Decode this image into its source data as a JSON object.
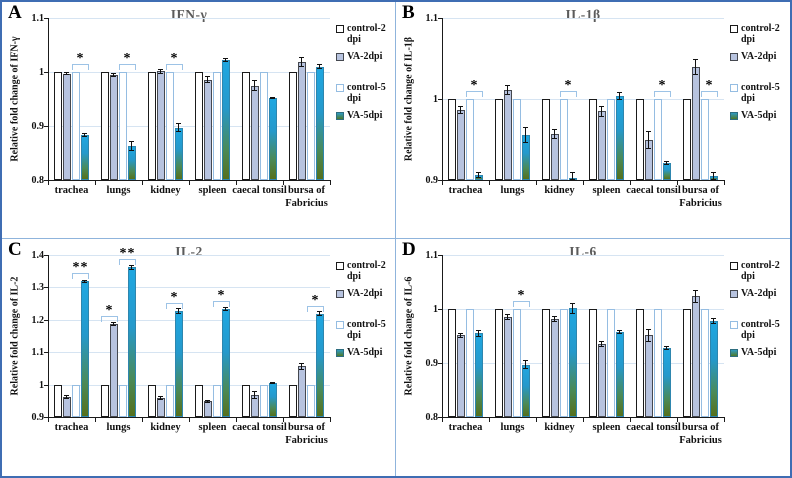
{
  "figure": {
    "description": "Four-panel bar chart of relative cytokine fold changes",
    "panels": [
      "A",
      "B",
      "C",
      "D"
    ]
  },
  "colors": {
    "outer_border": "#3F6DB3",
    "panel_divider": "#8FB4DC",
    "grid": "#D6E4F2",
    "axis": "#1a1a1a",
    "title": "#5B5B5B",
    "bracket": "#9DC3E6",
    "control2_fill": "#FFFFFF",
    "control2_border": "#1a1a1a",
    "va2_fill": "#B7C3DF",
    "control5_fill": "#FFFFFF",
    "control5_border": "#95BDE2",
    "va5_gradient_top": "#1FA7E1",
    "va5_gradient_bottom": "#55701C"
  },
  "categories": [
    "trachea",
    "lungs",
    "kidney",
    "spleen",
    "caecal tonsil",
    "bursa of Fabricius"
  ],
  "category_lines": [
    [
      "trachea"
    ],
    [
      "lungs"
    ],
    [
      "kidney"
    ],
    [
      "spleen"
    ],
    [
      "caecal tonsil"
    ],
    [
      "bursa of",
      "Fabricius"
    ]
  ],
  "legend": [
    {
      "key": "control2",
      "label": "control-2 dpi"
    },
    {
      "key": "va2",
      "label": "VA-2dpi"
    },
    {
      "key": "control5",
      "label": "control-5 dpi"
    },
    {
      "key": "va5",
      "label": "VA-5dpi"
    }
  ],
  "chart_data": [
    {
      "panel": "A",
      "type": "bar",
      "title": "IFN-γ",
      "ylabel": "Relative fold change of IFN-γ",
      "ylim": [
        0.8,
        1.1
      ],
      "yticks": [
        "0.8",
        "0.9",
        "1",
        "1.1"
      ],
      "grid": true,
      "legend_position": "right",
      "categories": [
        "trachea",
        "lungs",
        "kidney",
        "spleen",
        "caecal tonsil",
        "bursa of Fabricius"
      ],
      "series": [
        {
          "name": "control-2 dpi",
          "key": "control2",
          "values": [
            1,
            1,
            1,
            1,
            1,
            1
          ],
          "errors": [
            0,
            0,
            0,
            0,
            0,
            0
          ]
        },
        {
          "name": "VA-2dpi",
          "key": "va2",
          "values": [
            0.997,
            0.995,
            1.001,
            0.986,
            0.975,
            1.018
          ],
          "errors": [
            0.003,
            0.004,
            0.004,
            0.006,
            0.01,
            0.009
          ]
        },
        {
          "name": "control-5 dpi",
          "key": "control5",
          "values": [
            1,
            1,
            1,
            1,
            1,
            1
          ],
          "errors": [
            0,
            0,
            0,
            0,
            0,
            0
          ]
        },
        {
          "name": "VA-5dpi",
          "key": "va5",
          "values": [
            0.883,
            0.863,
            0.897,
            1.022,
            0.952,
            1.01
          ],
          "errors": [
            0.004,
            0.009,
            0.008,
            0.004,
            0.002,
            0.005
          ]
        }
      ],
      "significance": [
        {
          "category": "trachea",
          "category_index": 0,
          "pair": "5dpi",
          "compares": "control-5 dpi vs VA-5dpi",
          "label": "*"
        },
        {
          "category": "lungs",
          "category_index": 1,
          "pair": "5dpi",
          "compares": "control-5 dpi vs VA-5dpi",
          "label": "*"
        },
        {
          "category": "kidney",
          "category_index": 2,
          "pair": "5dpi",
          "compares": "control-5 dpi vs VA-5dpi",
          "label": "*"
        }
      ]
    },
    {
      "panel": "B",
      "type": "bar",
      "title": "IL-1β",
      "ylabel": "Relative fold change of IL-1β",
      "ylim": [
        0.9,
        1.1
      ],
      "yticks": [
        "0.9",
        "1",
        "1.1"
      ],
      "grid": true,
      "legend_position": "right",
      "categories": [
        "trachea",
        "lungs",
        "kidney",
        "spleen",
        "caecal tonsil",
        "bursa of Fabricius"
      ],
      "series": [
        {
          "name": "control-2 dpi",
          "key": "control2",
          "values": [
            1,
            1,
            1,
            1,
            1,
            1
          ],
          "errors": [
            0,
            0,
            0,
            0,
            0,
            0
          ]
        },
        {
          "name": "VA-2dpi",
          "key": "va2",
          "values": [
            0.986,
            1.011,
            0.957,
            0.985,
            0.949,
            1.04
          ],
          "errors": [
            0.005,
            0.006,
            0.006,
            0.007,
            0.011,
            0.01
          ]
        },
        {
          "name": "control-5 dpi",
          "key": "control5",
          "values": [
            1,
            1,
            1,
            1,
            1,
            1
          ],
          "errors": [
            0,
            0,
            0,
            0,
            0,
            0
          ]
        },
        {
          "name": "VA-5dpi",
          "key": "va5",
          "values": [
            0.906,
            0.956,
            0.901,
            1.004,
            0.921,
            0.905
          ],
          "errors": [
            0.004,
            0.01,
            0.009,
            0.005,
            0.003,
            0.005
          ]
        }
      ],
      "significance": [
        {
          "category": "trachea",
          "category_index": 0,
          "pair": "5dpi",
          "compares": "control-5 dpi vs VA-5dpi",
          "label": "*"
        },
        {
          "category": "kidney",
          "category_index": 2,
          "pair": "5dpi",
          "compares": "control-5 dpi vs VA-5dpi",
          "label": "*"
        },
        {
          "category": "caecal tonsil",
          "category_index": 4,
          "pair": "5dpi",
          "compares": "control-5 dpi vs VA-5dpi",
          "label": "*"
        },
        {
          "category": "bursa of Fabricius",
          "category_index": 5,
          "pair": "5dpi",
          "compares": "control-5 dpi vs VA-5dpi",
          "label": "*"
        }
      ]
    },
    {
      "panel": "C",
      "type": "bar",
      "title": "IL-2",
      "ylabel": "Relative fold change of IL-2",
      "ylim": [
        0.9,
        1.4
      ],
      "yticks": [
        "0.9",
        "1",
        "1.1",
        "1.2",
        "1.3",
        "1.4"
      ],
      "grid": true,
      "legend_position": "right",
      "categories": [
        "trachea",
        "lungs",
        "kidney",
        "spleen",
        "caecal tonsil",
        "bursa of Fabricius"
      ],
      "series": [
        {
          "name": "control-2 dpi",
          "key": "control2",
          "values": [
            1,
            1,
            1,
            1,
            1,
            1
          ],
          "errors": [
            0,
            0,
            0,
            0,
            0,
            0
          ]
        },
        {
          "name": "VA-2dpi",
          "key": "va2",
          "values": [
            0.962,
            1.187,
            0.959,
            0.948,
            0.968,
            1.056
          ],
          "errors": [
            0.006,
            0.005,
            0.006,
            0.005,
            0.012,
            0.01
          ]
        },
        {
          "name": "control-5 dpi",
          "key": "control5",
          "values": [
            1,
            1,
            1,
            1,
            1,
            1
          ],
          "errors": [
            0,
            0,
            0,
            0,
            0,
            0
          ]
        },
        {
          "name": "VA-5dpi",
          "key": "va5",
          "values": [
            1.319,
            1.362,
            1.228,
            1.234,
            1.005,
            1.219
          ],
          "errors": [
            0.005,
            0.008,
            0.009,
            0.006,
            0.002,
            0.007
          ]
        }
      ],
      "significance": [
        {
          "category": "trachea",
          "category_index": 0,
          "pair": "5dpi",
          "compares": "control-5 dpi vs VA-5dpi",
          "label": "**"
        },
        {
          "category": "lungs",
          "category_index": 1,
          "pair": "2dpi",
          "compares": "control-2 dpi vs VA-2dpi",
          "label": "*"
        },
        {
          "category": "lungs",
          "category_index": 1,
          "pair": "5dpi",
          "compares": "control-5 dpi vs VA-5dpi",
          "label": "**"
        },
        {
          "category": "kidney",
          "category_index": 2,
          "pair": "5dpi",
          "compares": "control-5 dpi vs VA-5dpi",
          "label": "*"
        },
        {
          "category": "spleen",
          "category_index": 3,
          "pair": "5dpi",
          "compares": "control-5 dpi vs VA-5dpi",
          "label": "*"
        },
        {
          "category": "bursa of Fabricius",
          "category_index": 5,
          "pair": "5dpi",
          "compares": "control-5 dpi vs VA-5dpi",
          "label": "*"
        }
      ]
    },
    {
      "panel": "D",
      "type": "bar",
      "title": "IL-6",
      "ylabel": "Relative fold change of IL-6",
      "ylim": [
        0.8,
        1.1
      ],
      "yticks": [
        "0.8",
        "0.9",
        "1",
        "1.1"
      ],
      "grid": true,
      "legend_position": "right",
      "categories": [
        "trachea",
        "lungs",
        "kidney",
        "spleen",
        "caecal tonsil",
        "bursa of Fabricius"
      ],
      "series": [
        {
          "name": "control-2 dpi",
          "key": "control2",
          "values": [
            1,
            1,
            1,
            1,
            1,
            1
          ],
          "errors": [
            0,
            0,
            0,
            0,
            0,
            0
          ]
        },
        {
          "name": "VA-2dpi",
          "key": "va2",
          "values": [
            0.951,
            0.985,
            0.982,
            0.935,
            0.951,
            1.024
          ],
          "errors": [
            0.004,
            0.006,
            0.006,
            0.006,
            0.012,
            0.012
          ]
        },
        {
          "name": "control-5 dpi",
          "key": "control5",
          "values": [
            1,
            1,
            1,
            1,
            1,
            1
          ],
          "errors": [
            0,
            0,
            0,
            0,
            0,
            0
          ]
        },
        {
          "name": "VA-5dpi",
          "key": "va5",
          "values": [
            0.955,
            0.897,
            1.001,
            0.957,
            0.928,
            0.978
          ],
          "errors": [
            0.006,
            0.009,
            0.01,
            0.004,
            0.003,
            0.006
          ]
        }
      ],
      "significance": [
        {
          "category": "lungs",
          "category_index": 1,
          "pair": "5dpi",
          "compares": "control-5 dpi vs VA-5dpi",
          "label": "*"
        }
      ]
    }
  ]
}
